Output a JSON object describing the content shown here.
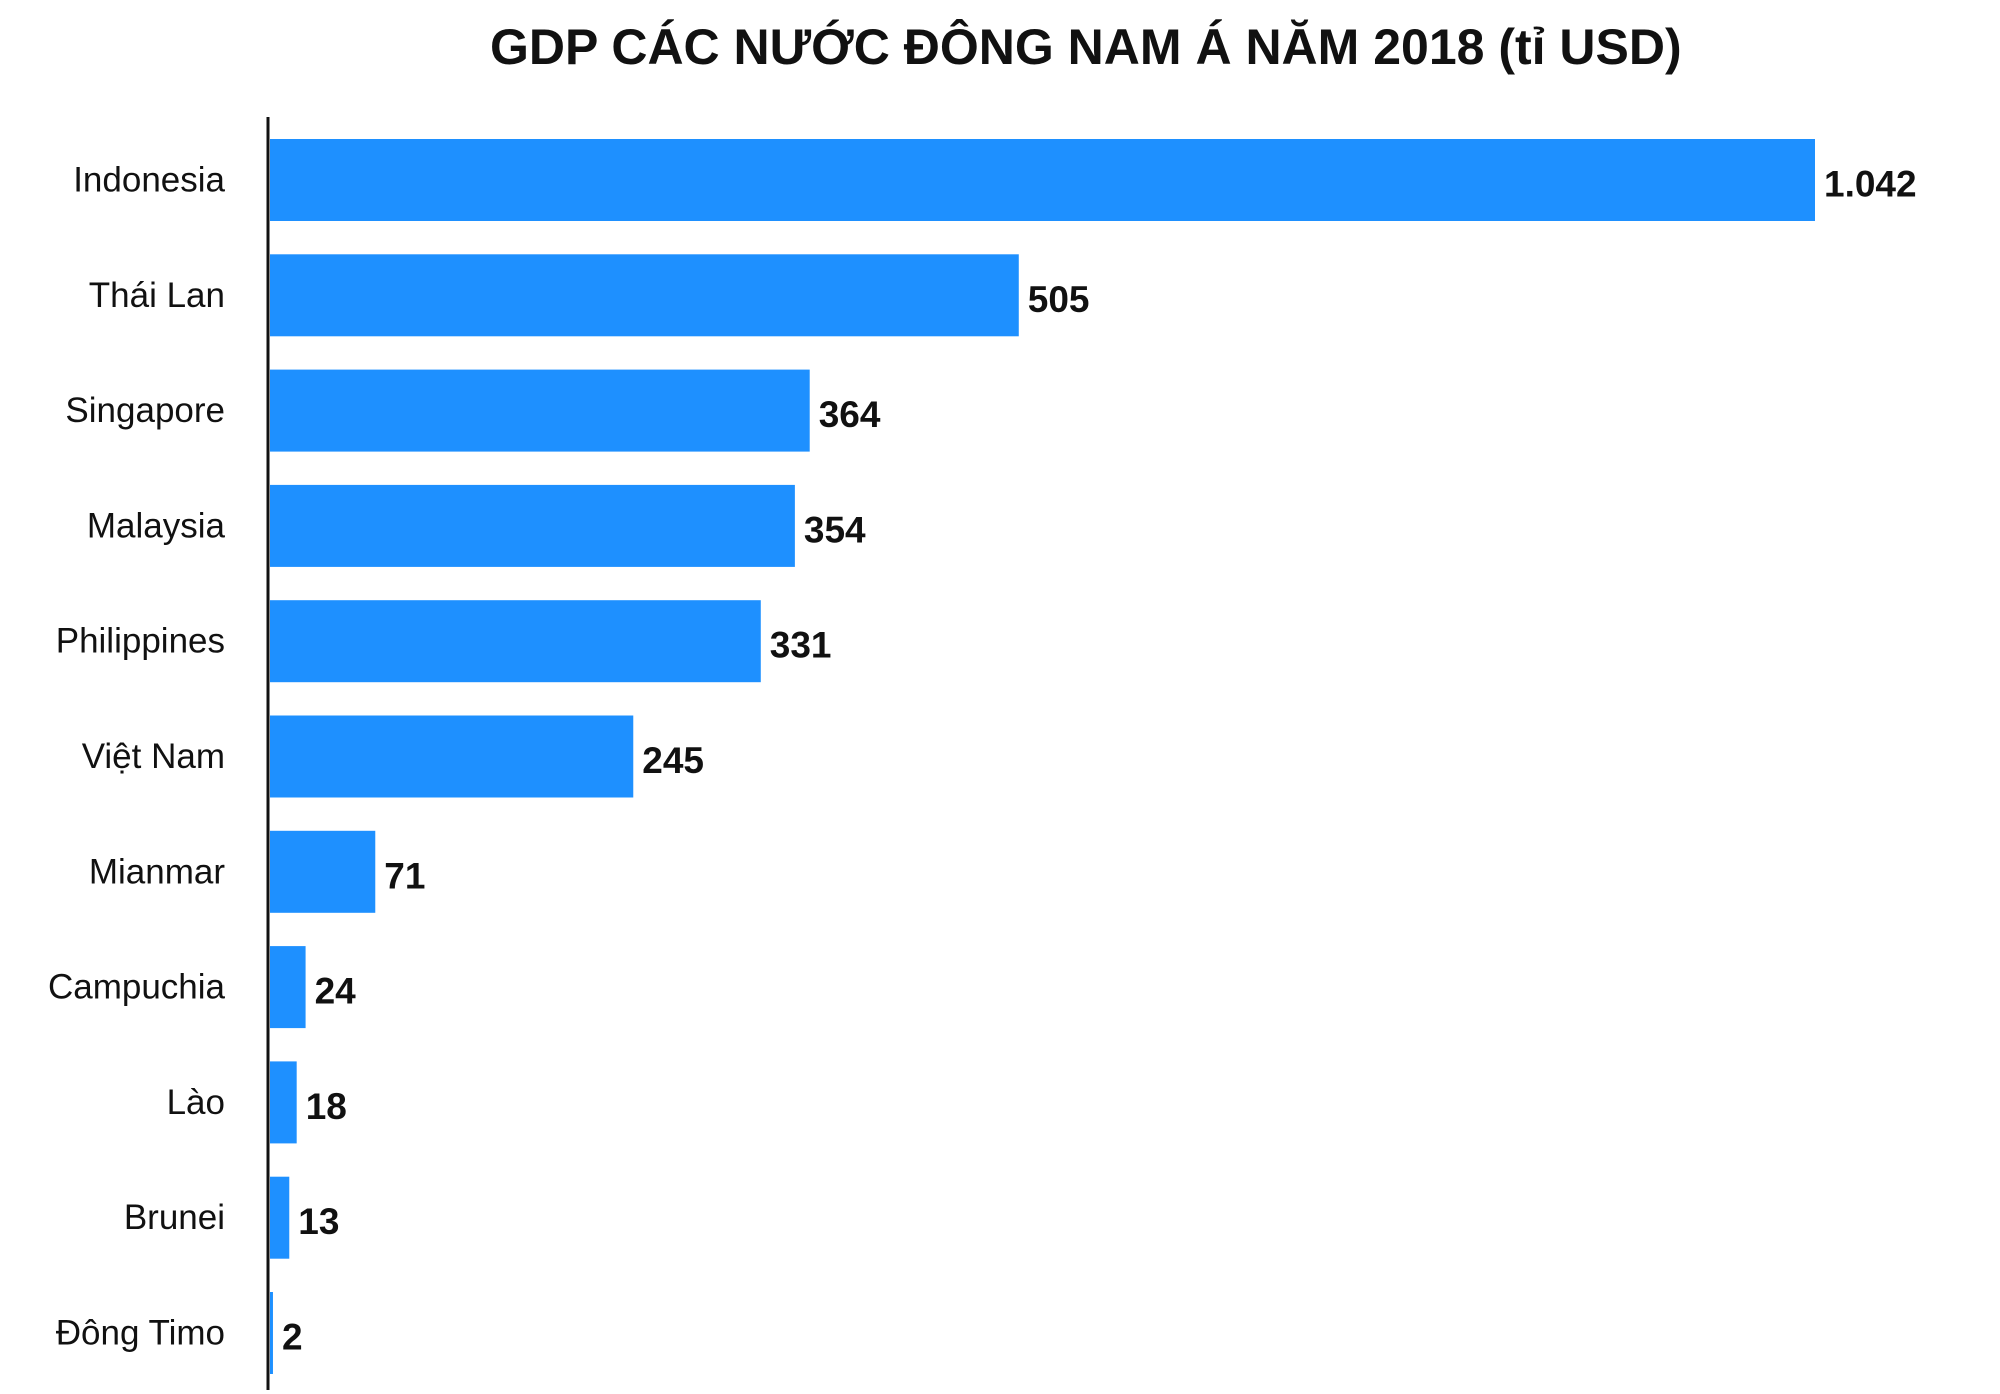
{
  "chart_data": {
    "type": "bar",
    "orientation": "horizontal",
    "title": "GDP CÁC NƯỚC ĐÔNG NAM Á NĂM 2018 (tỉ USD)",
    "categories": [
      "Indonesia",
      "Thái Lan",
      "Singapore",
      "Malaysia",
      "Philippines",
      "Việt Nam",
      "Mianmar",
      "Campuchia",
      "Lào",
      "Brunei",
      "Đông Timo"
    ],
    "values": [
      1042,
      505,
      364,
      354,
      331,
      245,
      71,
      24,
      18,
      13,
      2
    ],
    "value_labels": [
      "1.042",
      "505",
      "364",
      "354",
      "331",
      "245",
      "71",
      "24",
      "18",
      "13",
      "2"
    ],
    "xlim": [
      0,
      1042
    ],
    "grid": false,
    "legend": "none",
    "colors": {
      "bar": "#1E90FF",
      "axis": "#111111",
      "text": "#111111"
    }
  }
}
